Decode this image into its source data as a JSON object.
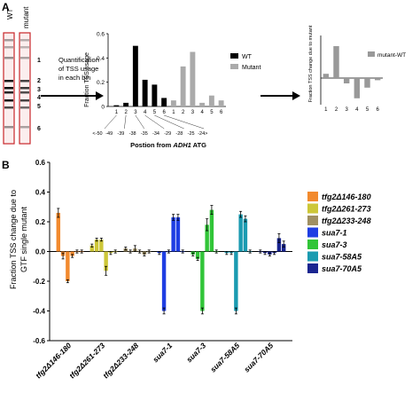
{
  "panel_labels": {
    "a": "A",
    "b": "B"
  },
  "gel": {
    "lanes": [
      "WT",
      "mutant"
    ],
    "bins": [
      "1",
      "2",
      "3",
      "4",
      "5",
      "6"
    ]
  },
  "arrow_caption": [
    "Quantification",
    "of TSS usage",
    "in each bin"
  ],
  "colors": {
    "wt": "#000000",
    "mutant": "#aaaaaa",
    "diff": "#999999",
    "gel_outline": "#c8262a"
  },
  "chart_data": [
    {
      "type": "bar",
      "ylabel": "Fraction TSS usage",
      "ylim": [
        0,
        0.6
      ],
      "yticks": [
        "0",
        "0.2",
        "0.4",
        "0.6"
      ],
      "categories": [
        "1",
        "2",
        "3",
        "4",
        "5",
        "6"
      ],
      "series": [
        {
          "name": "WT",
          "values": [
            0.01,
            0.03,
            0.5,
            0.22,
            0.18,
            0.07
          ]
        },
        {
          "name": "Mutant",
          "values": [
            0.05,
            0.33,
            0.45,
            0.03,
            0.09,
            0.05
          ]
        }
      ],
      "xlabel_parts": [
        "Postion from ",
        "ADH1",
        " ATG"
      ],
      "range_labels": [
        "<-50",
        "-49",
        "-39",
        "-38",
        "-35",
        "-34",
        "-29",
        "-28",
        "-25",
        "-24>"
      ]
    },
    {
      "type": "bar",
      "ylabel": "Fraction TSS change due to mutant",
      "categories": [
        "1",
        "2",
        "3",
        "4",
        "5",
        "6"
      ],
      "series": [
        {
          "name": "mutant-WT",
          "values": [
            0.04,
            0.3,
            -0.05,
            -0.19,
            -0.09,
            -0.02
          ]
        }
      ],
      "ylim": [
        -0.4,
        0.4
      ]
    },
    {
      "type": "bar",
      "ylabel": [
        "Fraction TSS change due to",
        "GTF single mutant"
      ],
      "ylim": [
        -0.6,
        0.6
      ],
      "yticks": [
        "-0.6",
        "-0.4",
        "-0.2",
        "0.0",
        "0.2",
        "0.4",
        "0.6"
      ],
      "categories": [
        "tfg2Δ146-180",
        "tfg2Δ261-273",
        "tfg2Δ233-248",
        "sua7-1",
        "sua7-3",
        "sua7-58A5",
        "sua7-70A5"
      ],
      "bins": [
        "1",
        "2",
        "3",
        "4",
        "5",
        "6"
      ],
      "series": [
        {
          "name": "tfg2Δ146-180",
          "color": "#f28a2e",
          "values": [
            0.26,
            -0.03,
            -0.2,
            -0.03,
            0.0,
            0.0
          ],
          "errors": [
            0.03,
            0.02,
            0.01,
            0.01,
            0.01,
            0.01
          ]
        },
        {
          "name": "tfg2Δ261-273",
          "color": "#cdc738",
          "values": [
            0.04,
            0.08,
            0.08,
            -0.13,
            -0.01,
            0.0
          ],
          "errors": [
            0.01,
            0.01,
            0.01,
            0.03,
            0.01,
            0.01
          ]
        },
        {
          "name": "tfg2Δ233-248",
          "color": "#a09063",
          "values": [
            0.02,
            0.0,
            0.02,
            0.0,
            -0.02,
            0.0
          ],
          "errors": [
            0.01,
            0.01,
            0.02,
            0.01,
            0.01,
            0.01
          ]
        },
        {
          "name": "sua7-1",
          "color": "#1f3ee3",
          "values": [
            -0.01,
            -0.4,
            0.0,
            0.23,
            0.23,
            0.0
          ],
          "errors": [
            0.01,
            0.02,
            0.01,
            0.02,
            0.02,
            0.01
          ]
        },
        {
          "name": "sua7-3",
          "color": "#31c538",
          "values": [
            -0.02,
            -0.05,
            -0.4,
            0.18,
            0.28,
            0.0
          ],
          "errors": [
            0.01,
            0.01,
            0.02,
            0.04,
            0.03,
            0.01
          ]
        },
        {
          "name": "sua7-58A5",
          "color": "#1b9bb1",
          "values": [
            -0.01,
            -0.01,
            -0.4,
            0.25,
            0.22,
            0.0
          ],
          "errors": [
            0.01,
            0.01,
            0.02,
            0.02,
            0.02,
            0.01
          ]
        },
        {
          "name": "sua7-70A5",
          "color": "#1a2590",
          "values": [
            0.0,
            -0.01,
            -0.02,
            -0.01,
            0.09,
            0.05
          ],
          "errors": [
            0.01,
            0.01,
            0.01,
            0.01,
            0.03,
            0.02
          ]
        }
      ]
    }
  ]
}
